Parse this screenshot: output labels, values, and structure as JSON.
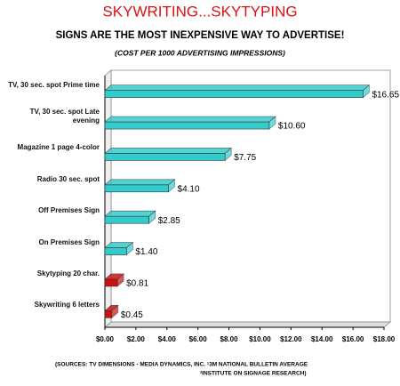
{
  "chart_data": {
    "type": "bar3d-horizontal",
    "title": "SKYWRITING...SKYTYPING",
    "subtitle": "SIGNS ARE THE MOST INEXPENSIVE WAY TO ADVERTISE!",
    "caption": "(COST PER 1000 ADVERTISING IMPRESSIONS)",
    "categories": [
      "TV, 30 sec. spot Prime time",
      "TV, 30 sec. spot Late evening",
      "Magazine 1 page 4-color",
      "Radio 30 sec. spot",
      "Off Premises Sign",
      "On Premises Sign",
      "Skytyping 20 char.",
      "Skywriting 6 letters"
    ],
    "values": [
      16.65,
      10.6,
      7.75,
      4.1,
      2.85,
      1.4,
      0.81,
      0.45
    ],
    "value_labels": [
      "$16.65",
      "$10.60",
      "$7.75",
      "$4.10",
      "$2.85",
      "$1.40",
      "$0.81",
      "$0.45"
    ],
    "colors": [
      "#33cccc",
      "#33cccc",
      "#33cccc",
      "#33cccc",
      "#33cccc",
      "#33cccc",
      "#cc1111",
      "#cc1111"
    ],
    "xlim": [
      0,
      18
    ],
    "xticks": [
      {
        "value": 0,
        "label": "$0.00"
      },
      {
        "value": 2,
        "label": "$2.00"
      },
      {
        "value": 4,
        "label": "$4.00"
      },
      {
        "value": 6,
        "label": "$6.00"
      },
      {
        "value": 8,
        "label": "$8.00"
      },
      {
        "value": 10,
        "label": "$10.00"
      },
      {
        "value": 12,
        "label": "$12.00"
      },
      {
        "value": 14,
        "label": "$14.00"
      },
      {
        "value": 16,
        "label": "$16.00"
      },
      {
        "value": 18,
        "label": "$18.00"
      }
    ],
    "notes": [
      "(SOURCES:  TV DIMENSIONS - MEDIA DYNAMICS, INC.  ¹3M NATIONAL BULLETIN AVERAGE",
      "²INSTITUTE ON SIGNAGE RESEARCH)"
    ]
  }
}
